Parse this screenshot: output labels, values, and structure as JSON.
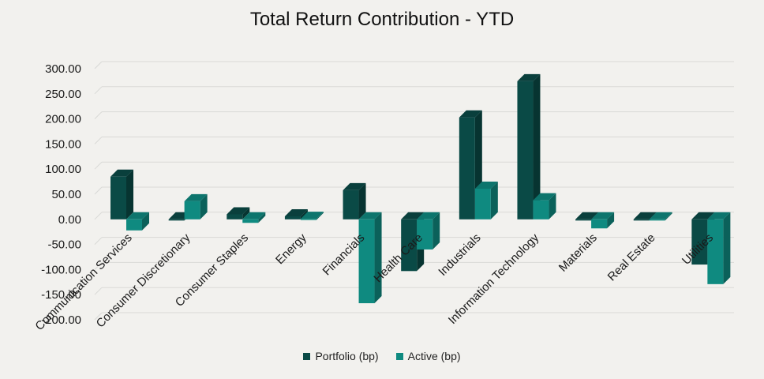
{
  "chart_data": {
    "type": "bar",
    "title": "Total Return Contribution - YTD",
    "categories": [
      "Communication Services",
      "Consumer Discretionary",
      "Consumer Staples",
      "Energy",
      "Financials",
      "Health Care",
      "Industrials",
      "Information Technology",
      "Materials",
      "Real Estate",
      "Utilities"
    ],
    "series": [
      {
        "name": "Portfolio (bp)",
        "color": "#0a4a46",
        "values": [
          85,
          -2,
          10,
          6,
          58,
          -103,
          203,
          275,
          -1,
          -1,
          -90
        ]
      },
      {
        "name": "Active (bp)",
        "color": "#0f8a80",
        "values": [
          -22,
          36,
          -7,
          1,
          -167,
          -60,
          61,
          38,
          -18,
          -2,
          -129
        ]
      }
    ],
    "ylim": [
      -200,
      300
    ],
    "yticks": [
      300,
      250,
      200,
      150,
      100,
      50,
      0,
      -50,
      -100,
      -150,
      -200
    ],
    "ytick_labels": [
      "300.00",
      "250.00",
      "200.00",
      "150.00",
      "100.00",
      "50.00",
      "0.00",
      "-50.00",
      "-100.00",
      "-150.00",
      "-200.00"
    ],
    "xlabel": "",
    "ylabel": "",
    "grid": true,
    "legend_position": "bottom"
  }
}
